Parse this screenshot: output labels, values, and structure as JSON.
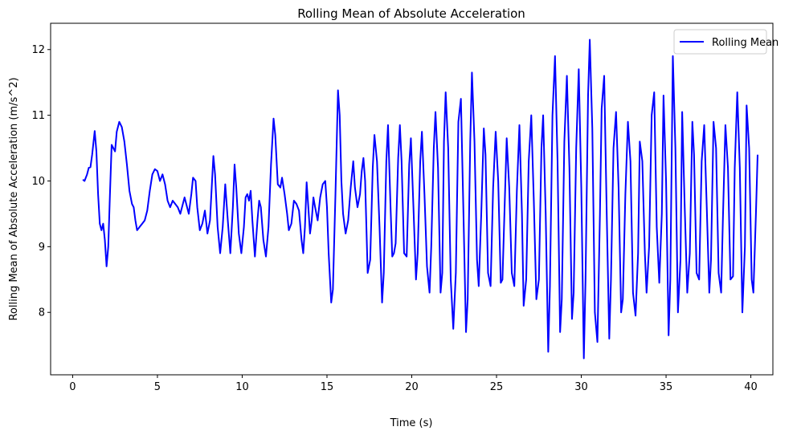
{
  "chart_data": {
    "type": "line",
    "title": "Rolling Mean of Absolute Acceleration",
    "xlabel": "Time (s)",
    "ylabel": "Rolling Mean of Absolute Acceleration (m/s^2)",
    "xlim": [
      -1.3,
      41.3
    ],
    "ylim": [
      7.05,
      12.4
    ],
    "xticks": [
      0,
      5,
      10,
      15,
      20,
      25,
      30,
      35,
      40
    ],
    "yticks": [
      8,
      9,
      10,
      11,
      12
    ],
    "xtick_labels": [
      "0",
      "5",
      "10",
      "15",
      "20",
      "25",
      "30",
      "35",
      "40"
    ],
    "ytick_labels": [
      "8",
      "9",
      "10",
      "11",
      "12"
    ],
    "grid": false,
    "legend": {
      "position": "top-right",
      "entries": [
        "Rolling Mean"
      ]
    },
    "series": [
      {
        "name": "Rolling Mean",
        "color": "#0000ff",
        "points": [
          [
            0.6,
            10.02
          ],
          [
            0.7,
            10.0
          ],
          [
            0.85,
            10.1
          ],
          [
            0.95,
            10.2
          ],
          [
            1.05,
            10.21
          ],
          [
            1.15,
            10.4
          ],
          [
            1.3,
            10.76
          ],
          [
            1.4,
            10.45
          ],
          [
            1.5,
            9.8
          ],
          [
            1.6,
            9.35
          ],
          [
            1.7,
            9.25
          ],
          [
            1.8,
            9.35
          ],
          [
            1.9,
            9.1
          ],
          [
            2.0,
            8.7
          ],
          [
            2.1,
            9.0
          ],
          [
            2.2,
            9.8
          ],
          [
            2.3,
            10.55
          ],
          [
            2.4,
            10.5
          ],
          [
            2.5,
            10.45
          ],
          [
            2.6,
            10.75
          ],
          [
            2.75,
            10.9
          ],
          [
            2.9,
            10.82
          ],
          [
            3.05,
            10.6
          ],
          [
            3.2,
            10.25
          ],
          [
            3.35,
            9.85
          ],
          [
            3.5,
            9.65
          ],
          [
            3.6,
            9.6
          ],
          [
            3.7,
            9.4
          ],
          [
            3.8,
            9.25
          ],
          [
            3.95,
            9.3
          ],
          [
            4.1,
            9.35
          ],
          [
            4.25,
            9.4
          ],
          [
            4.4,
            9.55
          ],
          [
            4.55,
            9.85
          ],
          [
            4.7,
            10.1
          ],
          [
            4.85,
            10.18
          ],
          [
            5.0,
            10.15
          ],
          [
            5.15,
            10.0
          ],
          [
            5.3,
            10.1
          ],
          [
            5.45,
            9.95
          ],
          [
            5.6,
            9.7
          ],
          [
            5.75,
            9.6
          ],
          [
            5.9,
            9.7
          ],
          [
            6.05,
            9.65
          ],
          [
            6.2,
            9.6
          ],
          [
            6.35,
            9.5
          ],
          [
            6.5,
            9.65
          ],
          [
            6.6,
            9.75
          ],
          [
            6.75,
            9.6
          ],
          [
            6.85,
            9.5
          ],
          [
            7.0,
            9.8
          ],
          [
            7.1,
            10.05
          ],
          [
            7.25,
            10.0
          ],
          [
            7.35,
            9.6
          ],
          [
            7.5,
            9.25
          ],
          [
            7.65,
            9.35
          ],
          [
            7.8,
            9.55
          ],
          [
            7.95,
            9.2
          ],
          [
            8.1,
            9.4
          ],
          [
            8.3,
            10.38
          ],
          [
            8.4,
            10.1
          ],
          [
            8.55,
            9.3
          ],
          [
            8.7,
            8.9
          ],
          [
            8.85,
            9.3
          ],
          [
            9.0,
            9.95
          ],
          [
            9.15,
            9.4
          ],
          [
            9.3,
            8.9
          ],
          [
            9.45,
            9.6
          ],
          [
            9.55,
            10.25
          ],
          [
            9.65,
            9.9
          ],
          [
            9.8,
            9.2
          ],
          [
            9.95,
            8.9
          ],
          [
            10.1,
            9.3
          ],
          [
            10.2,
            9.75
          ],
          [
            10.3,
            9.8
          ],
          [
            10.4,
            9.7
          ],
          [
            10.5,
            9.85
          ],
          [
            10.6,
            9.4
          ],
          [
            10.75,
            8.85
          ],
          [
            10.9,
            9.4
          ],
          [
            11.0,
            9.7
          ],
          [
            11.1,
            9.6
          ],
          [
            11.25,
            9.1
          ],
          [
            11.4,
            8.85
          ],
          [
            11.55,
            9.3
          ],
          [
            11.7,
            10.25
          ],
          [
            11.85,
            10.95
          ],
          [
            11.95,
            10.7
          ],
          [
            12.1,
            9.95
          ],
          [
            12.25,
            9.9
          ],
          [
            12.35,
            10.05
          ],
          [
            12.5,
            9.8
          ],
          [
            12.65,
            9.5
          ],
          [
            12.75,
            9.25
          ],
          [
            12.9,
            9.35
          ],
          [
            13.05,
            9.7
          ],
          [
            13.2,
            9.65
          ],
          [
            13.35,
            9.55
          ],
          [
            13.5,
            9.1
          ],
          [
            13.6,
            8.9
          ],
          [
            13.7,
            9.3
          ],
          [
            13.8,
            9.98
          ],
          [
            13.9,
            9.6
          ],
          [
            14.0,
            9.2
          ],
          [
            14.1,
            9.4
          ],
          [
            14.2,
            9.75
          ],
          [
            14.3,
            9.6
          ],
          [
            14.45,
            9.4
          ],
          [
            14.6,
            9.75
          ],
          [
            14.75,
            9.95
          ],
          [
            14.9,
            10.0
          ],
          [
            15.0,
            9.6
          ],
          [
            15.1,
            8.9
          ],
          [
            15.25,
            8.15
          ],
          [
            15.35,
            8.35
          ],
          [
            15.5,
            9.8
          ],
          [
            15.65,
            11.38
          ],
          [
            15.75,
            11.0
          ],
          [
            15.85,
            10.0
          ],
          [
            15.95,
            9.5
          ],
          [
            16.1,
            9.2
          ],
          [
            16.25,
            9.4
          ],
          [
            16.4,
            9.9
          ],
          [
            16.55,
            10.3
          ],
          [
            16.65,
            9.9
          ],
          [
            16.8,
            9.6
          ],
          [
            16.95,
            9.8
          ],
          [
            17.05,
            10.15
          ],
          [
            17.15,
            10.35
          ],
          [
            17.25,
            10.0
          ],
          [
            17.4,
            8.6
          ],
          [
            17.55,
            8.8
          ],
          [
            17.7,
            10.2
          ],
          [
            17.8,
            10.7
          ],
          [
            17.95,
            10.3
          ],
          [
            18.1,
            9.3
          ],
          [
            18.25,
            8.15
          ],
          [
            18.35,
            8.6
          ],
          [
            18.5,
            10.3
          ],
          [
            18.6,
            10.85
          ],
          [
            18.75,
            9.6
          ],
          [
            18.85,
            8.85
          ],
          [
            18.95,
            8.9
          ],
          [
            19.05,
            9.05
          ],
          [
            19.2,
            10.35
          ],
          [
            19.3,
            10.85
          ],
          [
            19.4,
            10.3
          ],
          [
            19.55,
            8.9
          ],
          [
            19.7,
            8.85
          ],
          [
            19.85,
            10.25
          ],
          [
            19.95,
            10.65
          ],
          [
            20.1,
            9.6
          ],
          [
            20.25,
            8.5
          ],
          [
            20.35,
            8.9
          ],
          [
            20.5,
            10.3
          ],
          [
            20.6,
            10.75
          ],
          [
            20.75,
            9.8
          ],
          [
            20.9,
            8.7
          ],
          [
            21.05,
            8.3
          ],
          [
            21.15,
            9.0
          ],
          [
            21.3,
            10.5
          ],
          [
            21.4,
            11.05
          ],
          [
            21.55,
            10.2
          ],
          [
            21.7,
            8.3
          ],
          [
            21.8,
            8.6
          ],
          [
            21.9,
            10.6
          ],
          [
            22.0,
            11.35
          ],
          [
            22.15,
            10.5
          ],
          [
            22.3,
            8.5
          ],
          [
            22.45,
            7.75
          ],
          [
            22.6,
            8.6
          ],
          [
            22.75,
            10.9
          ],
          [
            22.9,
            11.25
          ],
          [
            23.05,
            9.5
          ],
          [
            23.2,
            7.7
          ],
          [
            23.3,
            8.2
          ],
          [
            23.45,
            10.6
          ],
          [
            23.55,
            11.65
          ],
          [
            23.7,
            10.6
          ],
          [
            23.85,
            8.8
          ],
          [
            23.95,
            8.4
          ],
          [
            24.1,
            9.5
          ],
          [
            24.25,
            10.8
          ],
          [
            24.35,
            10.4
          ],
          [
            24.5,
            8.6
          ],
          [
            24.65,
            8.4
          ],
          [
            24.8,
            9.9
          ],
          [
            24.95,
            10.75
          ],
          [
            25.1,
            10.0
          ],
          [
            25.25,
            8.45
          ],
          [
            25.35,
            8.5
          ],
          [
            25.5,
            9.8
          ],
          [
            25.6,
            10.65
          ],
          [
            25.75,
            9.9
          ],
          [
            25.9,
            8.6
          ],
          [
            26.05,
            8.4
          ],
          [
            26.2,
            9.85
          ],
          [
            26.35,
            10.85
          ],
          [
            26.5,
            9.5
          ],
          [
            26.6,
            8.1
          ],
          [
            26.75,
            8.5
          ],
          [
            26.9,
            10.3
          ],
          [
            27.05,
            11.0
          ],
          [
            27.2,
            9.7
          ],
          [
            27.35,
            8.2
          ],
          [
            27.5,
            8.5
          ],
          [
            27.65,
            10.5
          ],
          [
            27.75,
            11.0
          ],
          [
            27.9,
            9.5
          ],
          [
            28.05,
            7.4
          ],
          [
            28.15,
            8.4
          ],
          [
            28.3,
            11.0
          ],
          [
            28.45,
            11.9
          ],
          [
            28.6,
            10.3
          ],
          [
            28.75,
            7.7
          ],
          [
            28.85,
            8.2
          ],
          [
            29.0,
            10.6
          ],
          [
            29.15,
            11.6
          ],
          [
            29.3,
            10.2
          ],
          [
            29.45,
            7.9
          ],
          [
            29.55,
            8.3
          ],
          [
            29.7,
            10.5
          ],
          [
            29.85,
            11.7
          ],
          [
            30.0,
            9.9
          ],
          [
            30.15,
            7.3
          ],
          [
            30.25,
            8.5
          ],
          [
            30.4,
            11.3
          ],
          [
            30.5,
            12.15
          ],
          [
            30.65,
            10.8
          ],
          [
            30.8,
            8.0
          ],
          [
            30.95,
            7.55
          ],
          [
            31.1,
            9.5
          ],
          [
            31.2,
            11.1
          ],
          [
            31.35,
            11.6
          ],
          [
            31.5,
            9.5
          ],
          [
            31.65,
            7.6
          ],
          [
            31.75,
            8.5
          ],
          [
            31.9,
            10.5
          ],
          [
            32.05,
            11.05
          ],
          [
            32.2,
            9.9
          ],
          [
            32.35,
            8.0
          ],
          [
            32.45,
            8.2
          ],
          [
            32.6,
            9.8
          ],
          [
            32.75,
            10.9
          ],
          [
            32.9,
            10.3
          ],
          [
            33.05,
            8.3
          ],
          [
            33.2,
            7.95
          ],
          [
            33.35,
            8.9
          ],
          [
            33.45,
            10.6
          ],
          [
            33.6,
            10.3
          ],
          [
            33.75,
            8.9
          ],
          [
            33.85,
            8.3
          ],
          [
            34.0,
            9.0
          ],
          [
            34.15,
            11.0
          ],
          [
            34.3,
            11.35
          ],
          [
            34.45,
            9.3
          ],
          [
            34.6,
            8.45
          ],
          [
            34.75,
            9.5
          ],
          [
            34.85,
            11.3
          ],
          [
            35.0,
            10.0
          ],
          [
            35.15,
            7.65
          ],
          [
            35.25,
            8.5
          ],
          [
            35.4,
            11.9
          ],
          [
            35.55,
            10.5
          ],
          [
            35.7,
            8.0
          ],
          [
            35.85,
            8.8
          ],
          [
            35.95,
            11.05
          ],
          [
            36.1,
            9.6
          ],
          [
            36.25,
            8.3
          ],
          [
            36.4,
            8.9
          ],
          [
            36.55,
            10.9
          ],
          [
            36.65,
            10.4
          ],
          [
            36.8,
            8.6
          ],
          [
            36.95,
            8.5
          ],
          [
            37.1,
            10.3
          ],
          [
            37.25,
            10.85
          ],
          [
            37.4,
            9.6
          ],
          [
            37.55,
            8.3
          ],
          [
            37.65,
            8.8
          ],
          [
            37.8,
            10.9
          ],
          [
            37.95,
            10.5
          ],
          [
            38.1,
            8.6
          ],
          [
            38.25,
            8.3
          ],
          [
            38.35,
            9.4
          ],
          [
            38.5,
            10.85
          ],
          [
            38.65,
            10.2
          ],
          [
            38.8,
            8.5
          ],
          [
            38.95,
            8.55
          ],
          [
            39.05,
            10.2
          ],
          [
            39.2,
            11.35
          ],
          [
            39.35,
            10.2
          ],
          [
            39.5,
            8.0
          ],
          [
            39.65,
            9.0
          ],
          [
            39.75,
            11.15
          ],
          [
            39.9,
            10.5
          ],
          [
            40.05,
            8.5
          ],
          [
            40.15,
            8.3
          ],
          [
            40.3,
            9.5
          ],
          [
            40.4,
            10.4
          ]
        ]
      }
    ]
  }
}
